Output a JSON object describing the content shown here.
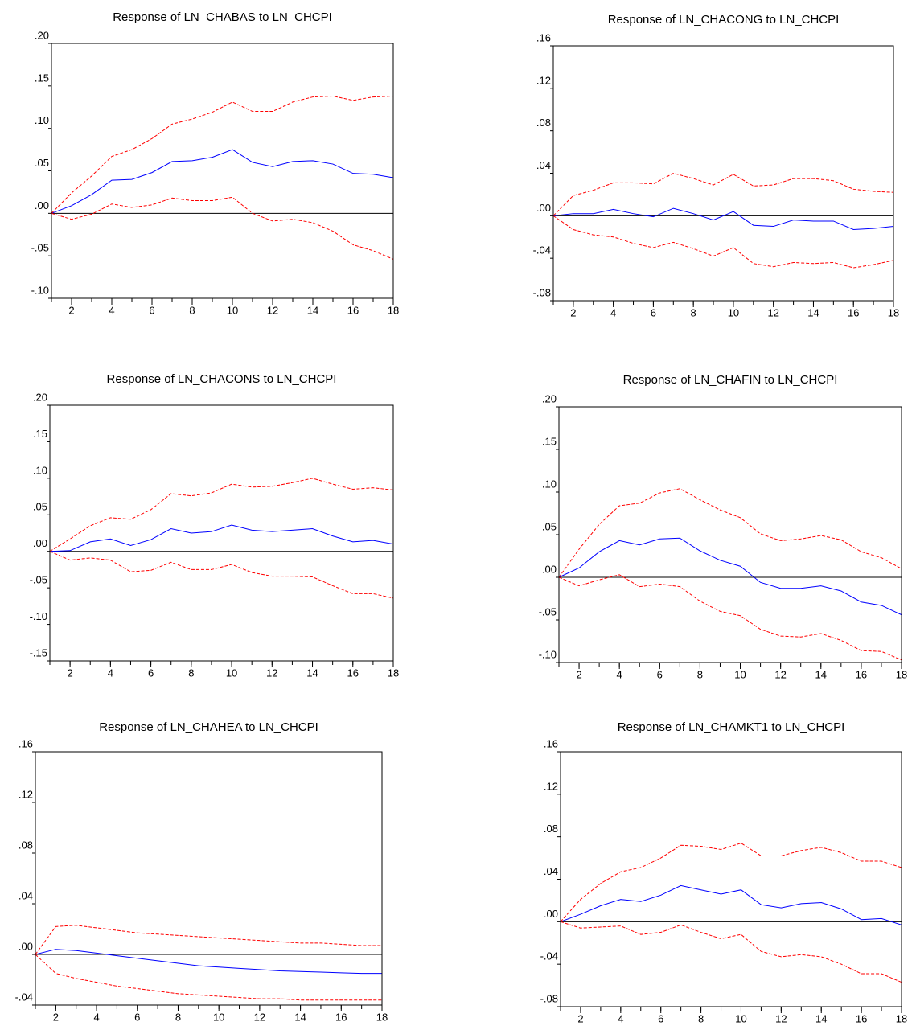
{
  "chart_data": [
    {
      "type": "line",
      "title": "Response of LN_CHABAS to LN_CHCPI",
      "x": [
        1,
        2,
        3,
        4,
        5,
        6,
        7,
        8,
        9,
        10,
        11,
        12,
        13,
        14,
        15,
        16,
        17,
        18
      ],
      "xlim": [
        1,
        18
      ],
      "xticks": [
        2,
        4,
        6,
        8,
        10,
        12,
        14,
        16,
        18
      ],
      "ylim": [
        -0.1,
        0.2
      ],
      "yticks": [
        {
          "value": -0.1,
          "label": "-.10"
        },
        {
          "value": -0.05,
          "label": "-.05"
        },
        {
          "value": 0,
          "label": ".00"
        },
        {
          "value": 0.05,
          "label": ".05"
        },
        {
          "value": 0.1,
          "label": ".10"
        },
        {
          "value": 0.15,
          "label": ".15"
        },
        {
          "value": 0.2,
          "label": ".20"
        }
      ],
      "series": [
        {
          "color": "#0000ff",
          "style": "solid",
          "values": [
            0,
            0.009,
            0.022,
            0.039,
            0.04,
            0.048,
            0.061,
            0.062,
            0.066,
            0.075,
            0.06,
            0.055,
            0.061,
            0.062,
            0.058,
            0.047,
            0.046,
            0.042
          ]
        },
        {
          "color": "#ff0000",
          "style": "dashed",
          "values": [
            0,
            0.024,
            0.044,
            0.067,
            0.075,
            0.088,
            0.105,
            0.111,
            0.119,
            0.131,
            0.12,
            0.12,
            0.131,
            0.137,
            0.138,
            0.133,
            0.137,
            0.138
          ]
        },
        {
          "color": "#ff0000",
          "style": "dashed",
          "values": [
            0,
            -0.007,
            -0.001,
            0.011,
            0.007,
            0.01,
            0.018,
            0.015,
            0.015,
            0.019,
            0.0,
            -0.009,
            -0.007,
            -0.011,
            -0.021,
            -0.037,
            -0.044,
            -0.054
          ]
        }
      ]
    },
    {
      "type": "line",
      "title": "Response of LN_CHACONG to LN_CHCPI",
      "x": [
        1,
        2,
        3,
        4,
        5,
        6,
        7,
        8,
        9,
        10,
        11,
        12,
        13,
        14,
        15,
        16,
        17,
        18
      ],
      "xlim": [
        1,
        18
      ],
      "xticks": [
        2,
        4,
        6,
        8,
        10,
        12,
        14,
        16,
        18
      ],
      "ylim": [
        -0.08,
        0.16
      ],
      "yticks": [
        {
          "value": -0.08,
          "label": "-.08"
        },
        {
          "value": -0.04,
          "label": "-.04"
        },
        {
          "value": 0,
          "label": ".00"
        },
        {
          "value": 0.04,
          "label": ".04"
        },
        {
          "value": 0.08,
          "label": ".08"
        },
        {
          "value": 0.12,
          "label": ".12"
        },
        {
          "value": 0.16,
          "label": ".16"
        }
      ],
      "series": [
        {
          "color": "#0000ff",
          "style": "solid",
          "values": [
            0,
            0.002,
            0.002,
            0.006,
            0.002,
            -0.001,
            0.007,
            0.002,
            -0.004,
            0.004,
            -0.009,
            -0.01,
            -0.004,
            -0.005,
            -0.005,
            -0.013,
            -0.012,
            -0.01
          ]
        },
        {
          "color": "#ff0000",
          "style": "dashed",
          "values": [
            0,
            0.019,
            0.024,
            0.031,
            0.031,
            0.03,
            0.04,
            0.035,
            0.029,
            0.039,
            0.028,
            0.029,
            0.035,
            0.035,
            0.033,
            0.025,
            0.023,
            0.022
          ]
        },
        {
          "color": "#ff0000",
          "style": "dashed",
          "values": [
            0,
            -0.013,
            -0.018,
            -0.02,
            -0.026,
            -0.03,
            -0.025,
            -0.031,
            -0.038,
            -0.03,
            -0.045,
            -0.048,
            -0.044,
            -0.045,
            -0.044,
            -0.049,
            -0.046,
            -0.042
          ]
        }
      ]
    },
    {
      "type": "line",
      "title": "Response of LN_CHACONS to LN_CHCPI",
      "x": [
        1,
        2,
        3,
        4,
        5,
        6,
        7,
        8,
        9,
        10,
        11,
        12,
        13,
        14,
        15,
        16,
        17,
        18
      ],
      "xlim": [
        1,
        18
      ],
      "xticks": [
        2,
        4,
        6,
        8,
        10,
        12,
        14,
        16,
        18
      ],
      "ylim": [
        -0.15,
        0.2
      ],
      "yticks": [
        {
          "value": -0.15,
          "label": "-.15"
        },
        {
          "value": -0.1,
          "label": "-.10"
        },
        {
          "value": -0.05,
          "label": "-.05"
        },
        {
          "value": 0,
          "label": ".00"
        },
        {
          "value": 0.05,
          "label": ".05"
        },
        {
          "value": 0.1,
          "label": ".10"
        },
        {
          "value": 0.15,
          "label": ".15"
        },
        {
          "value": 0.2,
          "label": ".20"
        }
      ],
      "series": [
        {
          "color": "#0000ff",
          "style": "solid",
          "values": [
            0,
            0.001,
            0.013,
            0.017,
            0.008,
            0.016,
            0.031,
            0.025,
            0.027,
            0.036,
            0.029,
            0.027,
            0.029,
            0.031,
            0.021,
            0.013,
            0.015,
            0.01
          ]
        },
        {
          "color": "#ff0000",
          "style": "dashed",
          "values": [
            0,
            0.017,
            0.035,
            0.046,
            0.044,
            0.057,
            0.079,
            0.076,
            0.08,
            0.092,
            0.088,
            0.089,
            0.094,
            0.1,
            0.092,
            0.085,
            0.087,
            0.084
          ]
        },
        {
          "color": "#ff0000",
          "style": "dashed",
          "values": [
            0,
            -0.012,
            -0.009,
            -0.012,
            -0.028,
            -0.026,
            -0.015,
            -0.025,
            -0.025,
            -0.018,
            -0.029,
            -0.034,
            -0.034,
            -0.035,
            -0.047,
            -0.058,
            -0.058,
            -0.064
          ]
        }
      ]
    },
    {
      "type": "line",
      "title": "Response of LN_CHAFIN to LN_CHCPI",
      "x": [
        1,
        2,
        3,
        4,
        5,
        6,
        7,
        8,
        9,
        10,
        11,
        12,
        13,
        14,
        15,
        16,
        17,
        18
      ],
      "xlim": [
        1,
        18
      ],
      "xticks": [
        2,
        4,
        6,
        8,
        10,
        12,
        14,
        16,
        18
      ],
      "ylim": [
        -0.1,
        0.2
      ],
      "yticks": [
        {
          "value": -0.1,
          "label": "-.10"
        },
        {
          "value": -0.05,
          "label": "-.05"
        },
        {
          "value": 0,
          "label": ".00"
        },
        {
          "value": 0.05,
          "label": ".05"
        },
        {
          "value": 0.1,
          "label": ".10"
        },
        {
          "value": 0.15,
          "label": ".15"
        },
        {
          "value": 0.2,
          "label": ".20"
        }
      ],
      "series": [
        {
          "color": "#0000ff",
          "style": "solid",
          "values": [
            0,
            0.011,
            0.03,
            0.043,
            0.038,
            0.045,
            0.046,
            0.031,
            0.02,
            0.013,
            -0.006,
            -0.013,
            -0.013,
            -0.01,
            -0.016,
            -0.029,
            -0.033,
            -0.044
          ]
        },
        {
          "color": "#ff0000",
          "style": "dashed",
          "values": [
            0,
            0.033,
            0.062,
            0.084,
            0.087,
            0.099,
            0.104,
            0.091,
            0.079,
            0.07,
            0.051,
            0.043,
            0.045,
            0.049,
            0.044,
            0.03,
            0.023,
            0.01
          ]
        },
        {
          "color": "#ff0000",
          "style": "dashed",
          "values": [
            0,
            -0.01,
            -0.003,
            0.003,
            -0.011,
            -0.008,
            -0.011,
            -0.028,
            -0.04,
            -0.045,
            -0.061,
            -0.069,
            -0.07,
            -0.066,
            -0.074,
            -0.086,
            -0.087,
            -0.097
          ]
        }
      ]
    },
    {
      "type": "line",
      "title": "Response of LN_CHAHEA to LN_CHCPI",
      "x": [
        1,
        2,
        3,
        4,
        5,
        6,
        7,
        8,
        9,
        10,
        11,
        12,
        13,
        14,
        15,
        16,
        17,
        18
      ],
      "xlim": [
        1,
        18
      ],
      "xticks": [
        2,
        4,
        6,
        8,
        10,
        12,
        14,
        16,
        18
      ],
      "ylim": [
        -0.04,
        0.16
      ],
      "yticks": [
        {
          "value": -0.04,
          "label": "-.04"
        },
        {
          "value": 0,
          "label": ".00"
        },
        {
          "value": 0.04,
          "label": ".04"
        },
        {
          "value": 0.08,
          "label": ".08"
        },
        {
          "value": 0.12,
          "label": ".12"
        },
        {
          "value": 0.16,
          "label": ".16"
        }
      ],
      "series": [
        {
          "color": "#0000ff",
          "style": "solid",
          "values": [
            0,
            0.004,
            0.003,
            0.001,
            -0.001,
            -0.003,
            -0.005,
            -0.007,
            -0.009,
            -0.01,
            -0.011,
            -0.012,
            -0.013,
            -0.0135,
            -0.014,
            -0.0145,
            -0.015,
            -0.015
          ]
        },
        {
          "color": "#ff0000",
          "style": "dashed",
          "values": [
            0,
            0.022,
            0.023,
            0.021,
            0.019,
            0.017,
            0.016,
            0.015,
            0.014,
            0.013,
            0.012,
            0.011,
            0.01,
            0.009,
            0.009,
            0.008,
            0.007,
            0.007
          ]
        },
        {
          "color": "#ff0000",
          "style": "dashed",
          "values": [
            0,
            -0.015,
            -0.019,
            -0.022,
            -0.025,
            -0.027,
            -0.029,
            -0.031,
            -0.032,
            -0.033,
            -0.034,
            -0.035,
            -0.035,
            -0.036,
            -0.036,
            -0.036,
            -0.036,
            -0.036
          ]
        }
      ]
    },
    {
      "type": "line",
      "title": "Response of LN_CHAMKT1 to LN_CHCPI",
      "x": [
        1,
        2,
        3,
        4,
        5,
        6,
        7,
        8,
        9,
        10,
        11,
        12,
        13,
        14,
        15,
        16,
        17,
        18
      ],
      "xlim": [
        1,
        18
      ],
      "xticks": [
        2,
        4,
        6,
        8,
        10,
        12,
        14,
        16,
        18
      ],
      "ylim": [
        -0.08,
        0.16
      ],
      "yticks": [
        {
          "value": -0.08,
          "label": "-.08"
        },
        {
          "value": -0.04,
          "label": "-.04"
        },
        {
          "value": 0,
          "label": ".00"
        },
        {
          "value": 0.04,
          "label": ".04"
        },
        {
          "value": 0.08,
          "label": ".08"
        },
        {
          "value": 0.12,
          "label": ".12"
        },
        {
          "value": 0.16,
          "label": ".16"
        }
      ],
      "series": [
        {
          "color": "#0000ff",
          "style": "solid",
          "values": [
            0,
            0.007,
            0.015,
            0.021,
            0.019,
            0.025,
            0.034,
            0.03,
            0.026,
            0.03,
            0.016,
            0.013,
            0.017,
            0.018,
            0.012,
            0.002,
            0.003,
            -0.003
          ]
        },
        {
          "color": "#ff0000",
          "style": "dashed",
          "values": [
            0,
            0.021,
            0.036,
            0.047,
            0.051,
            0.06,
            0.072,
            0.071,
            0.068,
            0.074,
            0.062,
            0.062,
            0.067,
            0.07,
            0.065,
            0.057,
            0.057,
            0.051
          ]
        },
        {
          "color": "#ff0000",
          "style": "dashed",
          "values": [
            0,
            -0.006,
            -0.005,
            -0.004,
            -0.012,
            -0.01,
            -0.003,
            -0.01,
            -0.016,
            -0.012,
            -0.028,
            -0.033,
            -0.031,
            -0.033,
            -0.04,
            -0.049,
            -0.049,
            -0.057
          ]
        }
      ]
    }
  ]
}
